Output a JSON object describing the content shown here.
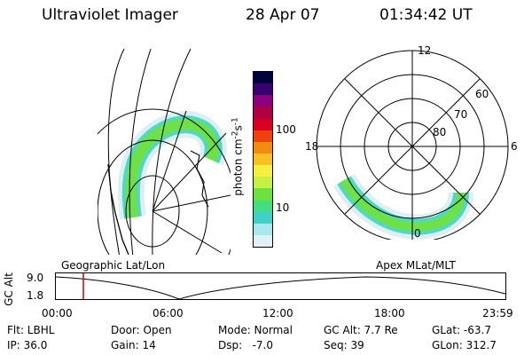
{
  "header": {
    "instrument": "Ultraviolet Imager",
    "date": "28 Apr 07",
    "time": "01:34:42 UT"
  },
  "colorbar": {
    "unit_label": "photon cm",
    "unit_sup1": "-2",
    "unit_s": "s",
    "unit_sup2": "-1",
    "tick_labels": [
      "100",
      "10"
    ],
    "colors": [
      "#000040",
      "#3a0070",
      "#8a0080",
      "#b00040",
      "#d80020",
      "#f04010",
      "#f48a10",
      "#f8c020",
      "#f8f040",
      "#c8f040",
      "#70e040",
      "#40e080",
      "#40d0c8",
      "#a8e8f0",
      "#e0f0f8"
    ]
  },
  "geo_panel": {
    "label": "Geographic Lat/Lon"
  },
  "polar_panel": {
    "label": "Apex MLat/MLT",
    "mlt_labels": [
      "12",
      "18",
      "6",
      "0"
    ],
    "lat_labels": [
      "60",
      "70",
      "80"
    ]
  },
  "altitude_plot": {
    "ylabel": "GC Alt",
    "ytick_labels": [
      "9.0",
      "1.8"
    ],
    "xtick_labels": [
      "00:00",
      "06:00",
      "12:00",
      "18:00",
      "23:59"
    ],
    "current_time_marker": "01:34:42"
  },
  "info": {
    "flt": "Flt: LBHL",
    "ip": "IP: 36.0",
    "door": "Door: Open",
    "gain": "Gain: 14",
    "mode": "Mode: Normal",
    "dsp": "Dsp:   -7.0",
    "gcalt": "GC Alt: 7.7 Re",
    "seq": "Seq: 39",
    "glat": "GLat: -63.7",
    "glon": "GLon: 312.7"
  }
}
